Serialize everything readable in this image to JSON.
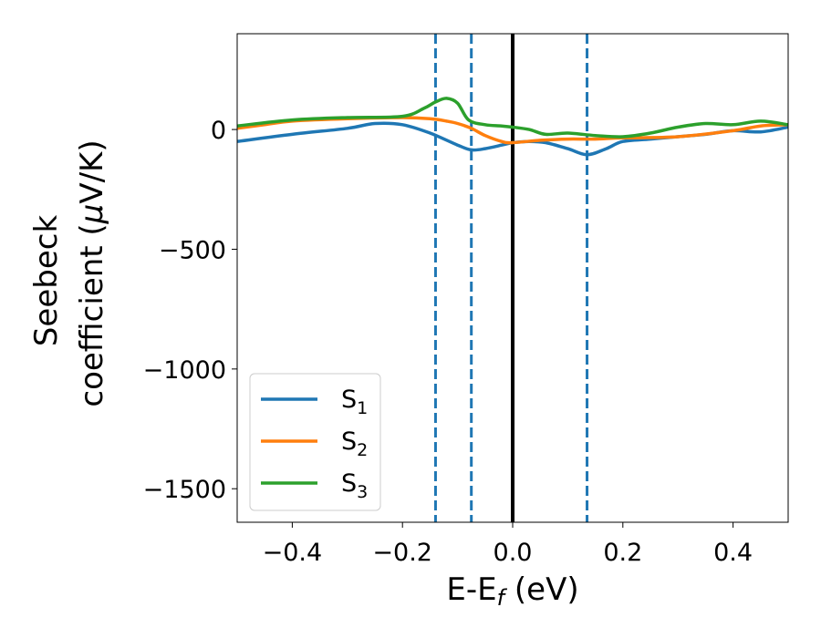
{
  "chart_data": {
    "type": "line",
    "title": "",
    "xlabel": "E-E",
    "xlabel_subscript": "f",
    "xlabel_unit": " (eV)",
    "ylabel_line1": "Seebeck",
    "ylabel_line2": "coefficient  (",
    "ylabel_mu": "μ",
    "ylabel_unit": "V/K)",
    "xlim": [
      -0.5,
      0.5
    ],
    "ylim": [
      -1640,
      400
    ],
    "xticks": [
      -0.4,
      -0.2,
      0.0,
      0.2,
      0.4
    ],
    "xtick_labels": [
      "−0.4",
      "−0.2",
      "0.0",
      "0.2",
      "0.4"
    ],
    "yticks": [
      0,
      -500,
      -1000,
      -1500
    ],
    "ytick_labels": [
      "0",
      "−500",
      "−1000",
      "−1500"
    ],
    "grid": false,
    "legend_position": "lower-left",
    "vlines": [
      {
        "x": 0.0,
        "style": "solid",
        "color": "#000000"
      },
      {
        "x": -0.14,
        "style": "dashed",
        "color": "#1f77b4"
      },
      {
        "x": -0.075,
        "style": "dashed",
        "color": "#1f77b4"
      },
      {
        "x": 0.135,
        "style": "dashed",
        "color": "#1f77b4"
      }
    ],
    "series": [
      {
        "name": "S",
        "subscript": "1",
        "color": "#1f77b4",
        "x": [
          -0.5,
          -0.4,
          -0.3,
          -0.25,
          -0.2,
          -0.15,
          -0.1,
          -0.075,
          -0.05,
          -0.02,
          0.0,
          0.03,
          0.06,
          0.1,
          0.135,
          0.17,
          0.2,
          0.25,
          0.3,
          0.35,
          0.4,
          0.45,
          0.5
        ],
        "y": [
          -50,
          -20,
          5,
          25,
          20,
          -15,
          -65,
          -85,
          -80,
          -65,
          -55,
          -50,
          -55,
          -80,
          -105,
          -80,
          -50,
          -40,
          -30,
          -20,
          -5,
          -10,
          10
        ]
      },
      {
        "name": "S",
        "subscript": "2",
        "color": "#ff7f0e",
        "x": [
          -0.5,
          -0.45,
          -0.4,
          -0.3,
          -0.2,
          -0.15,
          -0.12,
          -0.1,
          -0.075,
          -0.05,
          -0.02,
          0.0,
          0.05,
          0.1,
          0.15,
          0.2,
          0.3,
          0.4,
          0.45,
          0.5
        ],
        "y": [
          5,
          20,
          35,
          45,
          50,
          45,
          35,
          25,
          5,
          -25,
          -50,
          -55,
          -45,
          -40,
          -40,
          -35,
          -30,
          -5,
          15,
          20
        ]
      },
      {
        "name": "S",
        "subscript": "3",
        "color": "#2ca02c",
        "x": [
          -0.5,
          -0.4,
          -0.3,
          -0.2,
          -0.16,
          -0.14,
          -0.12,
          -0.1,
          -0.08,
          -0.05,
          -0.02,
          0.0,
          0.03,
          0.06,
          0.1,
          0.15,
          0.2,
          0.25,
          0.3,
          0.35,
          0.4,
          0.45,
          0.5
        ],
        "y": [
          15,
          40,
          50,
          55,
          90,
          115,
          130,
          110,
          40,
          20,
          15,
          10,
          0,
          -20,
          -15,
          -25,
          -30,
          -15,
          10,
          25,
          20,
          35,
          20
        ]
      }
    ]
  }
}
